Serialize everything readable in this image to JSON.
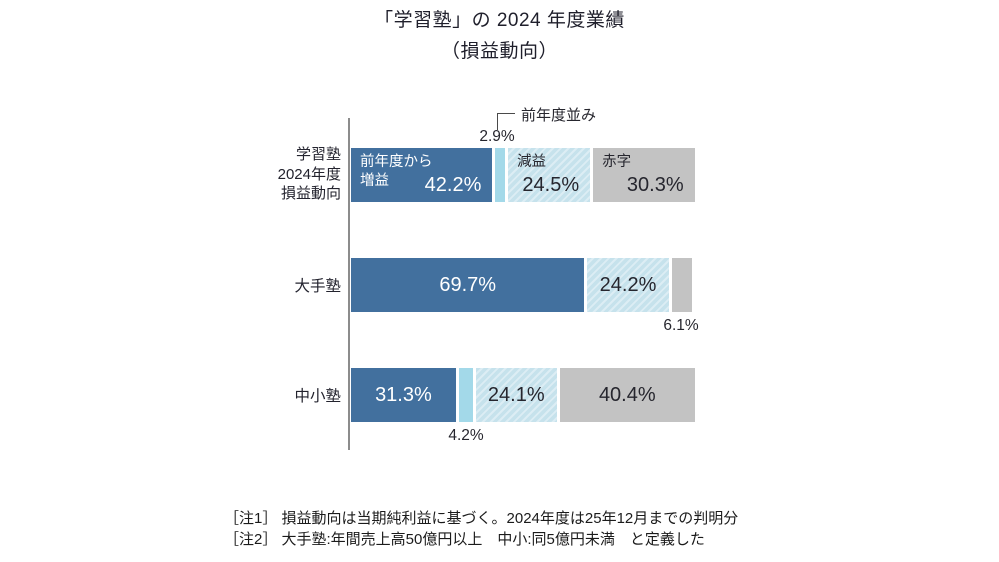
{
  "title": {
    "line1": "「学習塾」の 2024 年度業績",
    "line2": "（損益動向）"
  },
  "chart_data": {
    "type": "bar",
    "orientation": "horizontal",
    "stacked": true,
    "value_unit": "%",
    "title": "「学習塾」の 2024 年度業績（損益動向）",
    "x_range": [
      0,
      100
    ],
    "grid": false,
    "legend_position": "inline-labels",
    "series_names": [
      "前年度から増益",
      "前年度並み",
      "減益",
      "赤字"
    ],
    "series": [
      {
        "name": "前年度から増益",
        "style": "solid",
        "color": "#42709e",
        "values": [
          42.2,
          69.7,
          31.3
        ]
      },
      {
        "name": "前年度並み",
        "style": "solid",
        "color": "#a3d9e9",
        "values": [
          2.9,
          0,
          4.2
        ]
      },
      {
        "name": "減益",
        "style": "hatched",
        "color": "#c6e2ec",
        "stripe_color": "#dcedf4",
        "values": [
          24.5,
          24.2,
          24.1
        ]
      },
      {
        "name": "赤字",
        "style": "solid",
        "color": "#c3c3c3",
        "values": [
          30.3,
          6.1,
          40.4
        ]
      }
    ],
    "categories": [
      "学習塾 2024年度 損益動向",
      "大手塾",
      "中小塾"
    ],
    "rows": [
      {
        "category": "学習塾 2024年度 損益動向",
        "category_lines": [
          "学習塾",
          "2024年度",
          "損益動向"
        ],
        "segments": [
          {
            "series": "前年度から増益",
            "value": 42.2,
            "display": "42.2%",
            "name_lines": [
              "前年度から",
              "増益"
            ]
          },
          {
            "series": "前年度並み",
            "value": 2.9,
            "display": "2.9%",
            "callout": "前年度並み"
          },
          {
            "series": "減益",
            "value": 24.5,
            "display": "24.5%",
            "name": "減益"
          },
          {
            "series": "赤字",
            "value": 30.3,
            "display": "30.3%",
            "name": "赤字"
          }
        ]
      },
      {
        "category": "大手塾",
        "segments": [
          {
            "series": "前年度から増益",
            "value": 69.7,
            "display": "69.7%"
          },
          {
            "series": "減益",
            "value": 24.2,
            "display": "24.2%"
          },
          {
            "series": "赤字",
            "value": 6.1,
            "display": "6.1%",
            "label_position": "below"
          }
        ]
      },
      {
        "category": "中小塾",
        "segments": [
          {
            "series": "前年度から増益",
            "value": 31.3,
            "display": "31.3%"
          },
          {
            "series": "前年度並み",
            "value": 4.2,
            "display": "4.2%",
            "label_position": "below"
          },
          {
            "series": "減益",
            "value": 24.1,
            "display": "24.1%"
          },
          {
            "series": "赤字",
            "value": 40.4,
            "display": "40.4%"
          }
        ]
      }
    ]
  },
  "notes": [
    "［注1］ 損益動向は当期純利益に基づく。2024年度は25年12月までの判明分",
    "［注2］ 大手塾:年間売上高50億円以上　中小:同5億円未満　と定義した"
  ]
}
